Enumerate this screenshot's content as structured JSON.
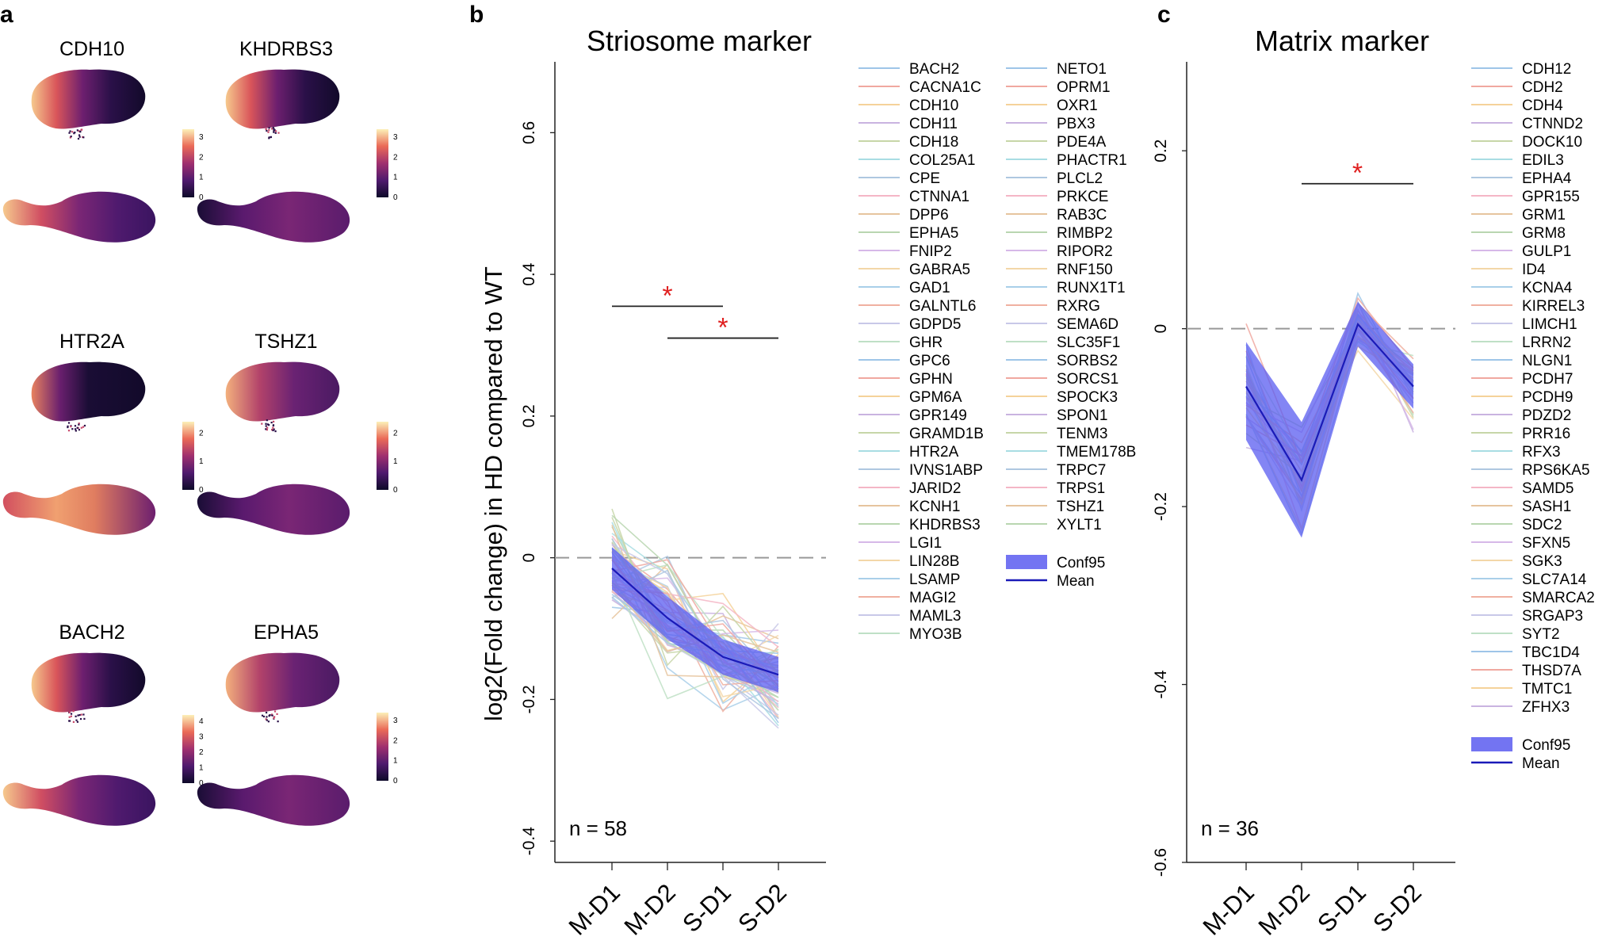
{
  "panel_a": {
    "letter": "a",
    "plots": [
      {
        "gene": "CDH10",
        "colorbar_ticks": [
          "0",
          "1",
          "2",
          "3"
        ],
        "pattern": "left"
      },
      {
        "gene": "KHDRBS3",
        "colorbar_ticks": [
          "0",
          "1",
          "2",
          "3"
        ],
        "pattern": "left"
      },
      {
        "gene": "HTR2A",
        "colorbar_ticks": [
          "0",
          "1",
          "2"
        ],
        "pattern": "mid"
      },
      {
        "gene": "TSHZ1",
        "colorbar_ticks": [
          "0",
          "1",
          "2"
        ],
        "pattern": "left"
      },
      {
        "gene": "BACH2",
        "colorbar_ticks": [
          "0",
          "1",
          "2",
          "3",
          "4"
        ],
        "pattern": "left"
      },
      {
        "gene": "EPHA5",
        "colorbar_ticks": [
          "0",
          "1",
          "2",
          "3"
        ],
        "pattern": "left"
      }
    ]
  },
  "chart_data": [
    {
      "type": "line",
      "panel_letter": "b",
      "title": "Striosome marker",
      "ylabel": "log2(Fold change) in HD compared to WT",
      "categories": [
        "M-D1",
        "M-D2",
        "S-D1",
        "S-D2"
      ],
      "ylim": [
        -0.43,
        0.7
      ],
      "yticks": [
        "0.6",
        "0.4",
        "0.2",
        "0",
        "-0.2",
        "-0.4"
      ],
      "n_label": "n = 58",
      "mean": [
        -0.015,
        -0.085,
        -0.14,
        -0.165
      ],
      "ci_low": [
        -0.045,
        -0.115,
        -0.165,
        -0.19
      ],
      "ci_high": [
        0.015,
        -0.055,
        -0.115,
        -0.14
      ],
      "significance": [
        {
          "from": "M-D1",
          "to": "S-D1",
          "y": 0.355,
          "mark": "*"
        },
        {
          "from": "M-D2",
          "to": "S-D2",
          "y": 0.31,
          "mark": "*"
        }
      ],
      "legend_genes": [
        "BACH2",
        "CACNA1C",
        "CDH10",
        "CDH11",
        "CDH18",
        "COL25A1",
        "CPE",
        "CTNNA1",
        "DPP6",
        "EPHA5",
        "FNIP2",
        "GABRA5",
        "GAD1",
        "GALNTL6",
        "GDPD5",
        "GHR",
        "GPC6",
        "GPHN",
        "GPM6A",
        "GPR149",
        "GRAMD1B",
        "HTR2A",
        "IVNS1ABP",
        "JARID2",
        "KCNH1",
        "KHDRBS3",
        "LGI1",
        "LIN28B",
        "LSAMP",
        "MAGI2",
        "MAML3",
        "MYO3B",
        "NETO1",
        "OPRM1",
        "OXR1",
        "PBX3",
        "PDE4A",
        "PHACTR1",
        "PLCL2",
        "PRKCE",
        "RAB3C",
        "RIMBP2",
        "RIPOR2",
        "RNF150",
        "RUNX1T1",
        "RXRG",
        "SEMA6D",
        "SLC35F1",
        "SORBS2",
        "SORCS1",
        "SPOCK3",
        "SPON1",
        "TENM3",
        "TMEM178B",
        "TRPC7",
        "TRPS1",
        "TSHZ1",
        "XYLT1"
      ],
      "legend_conf": "Conf95",
      "legend_mean": "Mean"
    },
    {
      "type": "line",
      "panel_letter": "c",
      "title": "Matrix marker",
      "ylabel": "",
      "categories": [
        "M-D1",
        "M-D2",
        "S-D1",
        "S-D2"
      ],
      "ylim": [
        -0.6,
        0.3
      ],
      "yticks": [
        "0.2",
        "0",
        "-0.2",
        "-0.4",
        "-0.6"
      ],
      "n_label": "n = 36",
      "mean": [
        -0.065,
        -0.17,
        0.005,
        -0.065
      ],
      "ci_low": [
        -0.125,
        -0.235,
        -0.02,
        -0.09
      ],
      "ci_high": [
        -0.015,
        -0.105,
        0.03,
        -0.04
      ],
      "significance": [
        {
          "from": "M-D2",
          "to": "S-D2",
          "y": 0.163,
          "mark": "*"
        }
      ],
      "legend_genes": [
        "CDH12",
        "CDH2",
        "CDH4",
        "CTNND2",
        "DOCK10",
        "EDIL3",
        "EPHA4",
        "GPR155",
        "GRM1",
        "GRM8",
        "GULP1",
        "ID4",
        "KCNA4",
        "KIRREL3",
        "LIMCH1",
        "LRRN2",
        "NLGN1",
        "PCDH7",
        "PCDH9",
        "PDZD2",
        "PRR16",
        "RFX3",
        "RPS6KA5",
        "SAMD5",
        "SASH1",
        "SDC2",
        "SFXN5",
        "SGK3",
        "SLC7A14",
        "SMARCA2",
        "SRGAP3",
        "SYT2",
        "TBC1D4",
        "THSD7A",
        "TMTC1",
        "ZFHX3"
      ],
      "legend_conf": "Conf95",
      "legend_mean": "Mean"
    }
  ]
}
